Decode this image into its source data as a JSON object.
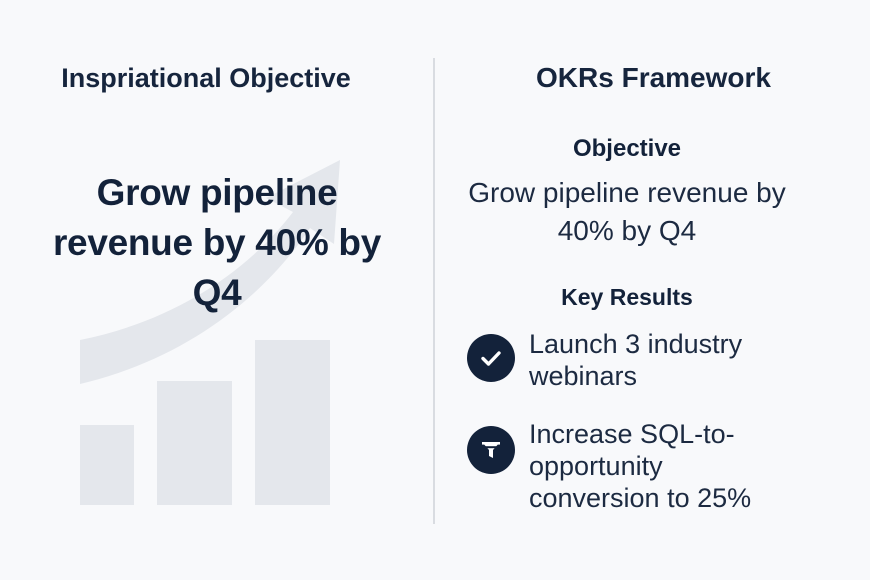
{
  "left": {
    "title": "Inspriational Objective",
    "objective": "Grow pipeline revenue by 40% by Q4"
  },
  "right": {
    "title": "OKRs Framework",
    "objective_label": "Objective",
    "objective_text": "Grow pipeline revenue by 40% by Q4",
    "key_results_label": "Key Results",
    "key_results": [
      {
        "text": "Launch 3 industry webinars",
        "icon": "check-icon"
      },
      {
        "text": "Increase SQL-to-opportunity conversion to 25%",
        "icon": "funnel-icon"
      }
    ]
  },
  "colors": {
    "background": "#f8f9fb",
    "text_dark": "#13223a",
    "graphic_light": "#e4e7ec",
    "divider": "#d9dce1"
  }
}
